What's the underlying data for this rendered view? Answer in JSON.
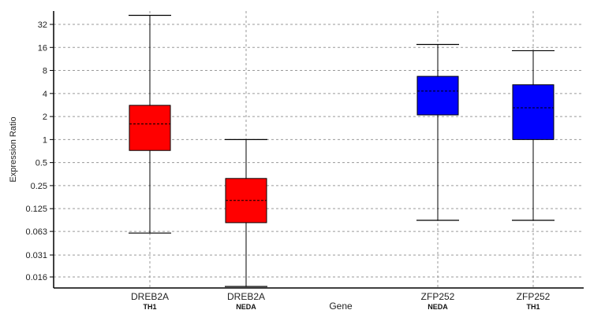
{
  "chart_data": {
    "type": "box",
    "title": "",
    "xlabel": "Gene",
    "ylabel": "Expression Ratio",
    "yscale": "log2",
    "ylim": [
      0.012,
      40
    ],
    "grid": true,
    "y_ticks": [
      "32",
      "16",
      "8",
      "4",
      "2",
      "1",
      "0.5",
      "0.25",
      "0.125",
      "0.063",
      "0.031",
      "0.016"
    ],
    "y_tick_values": [
      32,
      16,
      8,
      4,
      2,
      1,
      0.5,
      0.25,
      0.125,
      0.063,
      0.031,
      0.016
    ],
    "boxes": [
      {
        "gene": "DREB2A",
        "sample": "TH1",
        "min": 0.06,
        "q1": 0.72,
        "median": 1.6,
        "q3": 2.8,
        "max": 42,
        "color": "#ff0000"
      },
      {
        "gene": "DREB2A",
        "sample": "NEDA",
        "min": 0.012,
        "q1": 0.082,
        "median": 0.16,
        "q3": 0.31,
        "max": 1.0,
        "color": "#ff0000"
      },
      {
        "gene": "ZFP252",
        "sample": "NEDA",
        "min": 0.088,
        "q1": 2.1,
        "median": 4.3,
        "q3": 6.7,
        "max": 17.5,
        "color": "#0000ff"
      },
      {
        "gene": "ZFP252",
        "sample": "TH1",
        "min": 0.088,
        "q1": 1.0,
        "median": 2.6,
        "q3": 5.2,
        "max": 14.5,
        "color": "#0000ff"
      }
    ]
  }
}
